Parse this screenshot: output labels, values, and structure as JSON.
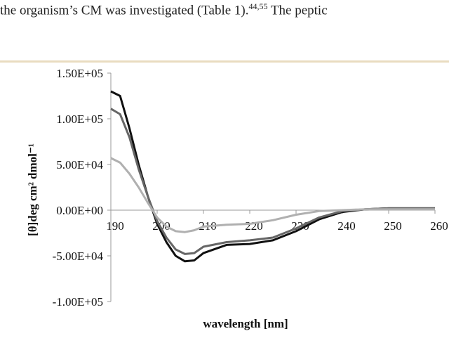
{
  "page_text": {
    "before": "the organism’s CM was investigated (Table 1).",
    "citation": "44,55",
    "after": " The peptic"
  },
  "chart_data": {
    "type": "line",
    "xlabel": "wavelength [nm]",
    "ylabel": "[θ]deg cm² dmol⁻¹",
    "x": [
      190,
      192,
      194,
      196,
      198,
      200,
      202,
      204,
      206,
      208,
      210,
      215,
      220,
      225,
      230,
      235,
      240,
      245,
      250,
      255,
      260
    ],
    "series": [
      {
        "color": "#111111",
        "values": [
          130000,
          125000,
          90000,
          50000,
          15000,
          -15000,
          -35000,
          -50000,
          -56000,
          -55000,
          -47000,
          -38000,
          -37000,
          -33000,
          -23000,
          -10000,
          -2000,
          1000,
          2000,
          2000,
          2000
        ]
      },
      {
        "color": "#666666",
        "values": [
          111000,
          105000,
          80000,
          45000,
          15000,
          -12000,
          -30000,
          -43000,
          -48000,
          -47000,
          -40000,
          -35000,
          -33000,
          -30000,
          -20000,
          -8000,
          -1000,
          1000,
          2000,
          2000,
          2000
        ]
      },
      {
        "color": "#b0b0b0",
        "values": [
          57000,
          52000,
          40000,
          25000,
          8000,
          -8000,
          -18000,
          -23000,
          -24000,
          -22000,
          -18000,
          -16000,
          -15000,
          -11000,
          -5000,
          -1000,
          0,
          1000,
          1000,
          1000,
          1000
        ]
      }
    ],
    "xlim": [
      190,
      260
    ],
    "xticks": [
      190,
      200,
      210,
      220,
      230,
      240,
      250,
      260
    ],
    "ylim": [
      -100000,
      150000
    ],
    "yticks": [
      {
        "value": -100000,
        "label": "-1.00E+05"
      },
      {
        "value": -50000,
        "label": "-5.00E+04"
      },
      {
        "value": 0,
        "label": "0.00E+00"
      },
      {
        "value": 50000,
        "label": "5.00E+04"
      },
      {
        "value": 100000,
        "label": "1.00E+05"
      },
      {
        "value": 150000,
        "label": "1.50E+05"
      }
    ]
  }
}
